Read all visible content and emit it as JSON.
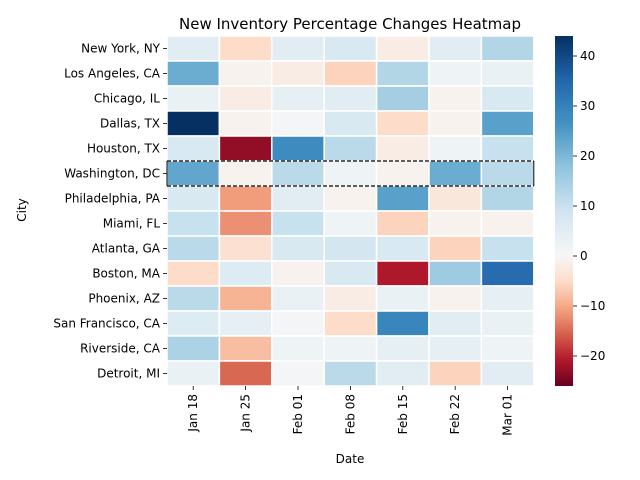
{
  "chart_data": {
    "type": "heatmap",
    "title": "New Inventory Percentage Changes Heatmap",
    "xlabel": "Date",
    "ylabel": "City",
    "x": [
      "Jan 18",
      "Jan 25",
      "Feb 01",
      "Feb 08",
      "Feb 15",
      "Feb 22",
      "Mar 01"
    ],
    "y": [
      "New York, NY",
      "Los Angeles, CA",
      "Chicago, IL",
      "Dallas, TX",
      "Houston, TX",
      "Washington, DC",
      "Philadelphia, PA",
      "Miami, FL",
      "Atlanta, GA",
      "Boston, MA",
      "Phoenix, AZ",
      "San Francisco, CA",
      "Riverside, CA",
      "Detroit, MI"
    ],
    "values": [
      [
        5,
        -5,
        5,
        7,
        -2,
        5,
        13
      ],
      [
        22,
        -1,
        -2,
        -6,
        13,
        2,
        3
      ],
      [
        3,
        -2,
        4,
        5,
        15,
        -1,
        7
      ],
      [
        44,
        -1,
        1,
        7,
        -5,
        -1,
        24
      ],
      [
        7,
        -23,
        28,
        12,
        -2,
        2,
        10
      ],
      [
        23,
        -1,
        12,
        2,
        -1,
        22,
        12
      ],
      [
        7,
        -11,
        5,
        -1,
        24,
        -3,
        13
      ],
      [
        10,
        -12,
        10,
        2,
        -6,
        -1,
        -1
      ],
      [
        12,
        -4,
        7,
        8,
        7,
        -6,
        10
      ],
      [
        -5,
        6,
        -1,
        7,
        -21,
        16,
        34
      ],
      [
        12,
        -9,
        3,
        -2,
        3,
        -1,
        4
      ],
      [
        6,
        4,
        1,
        -5,
        29,
        5,
        3
      ],
      [
        14,
        -8,
        2,
        2,
        4,
        4,
        2
      ],
      [
        3,
        -15,
        1,
        12,
        5,
        -6,
        5
      ]
    ],
    "vmin": -26,
    "vmax": 44,
    "colormap": "RdBu_r",
    "colorbar_ticks": [
      -20,
      -10,
      0,
      10,
      20,
      30,
      40
    ],
    "highlighted_row": "Washington, DC",
    "cell_border_color": "#ffffff",
    "highlight_color": "#000000"
  }
}
